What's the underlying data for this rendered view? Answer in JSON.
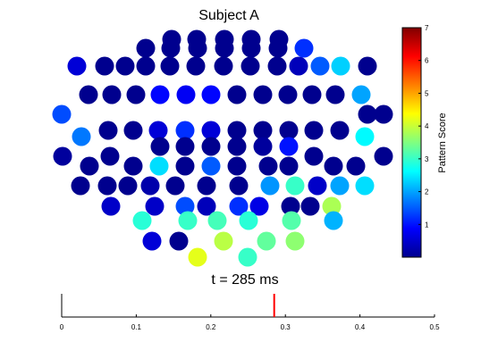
{
  "chart_data": [
    {
      "type": "scatter",
      "subtype": "topographic-electrode-map",
      "title": "Subject A",
      "colorbar": {
        "label": "Pattern Score",
        "colormap": "jet",
        "range": [
          0,
          7
        ],
        "ticks": [
          "1",
          "2",
          "3",
          "4",
          "5",
          "6",
          "7"
        ]
      },
      "electrode_rows": [
        [
          0.1,
          0.1,
          0.1,
          0.1,
          0.1
        ],
        [
          0.1,
          0.1,
          0.1,
          0.1,
          0.1,
          0.1
        ],
        [
          1.2,
          0.6,
          0.1,
          0.1,
          0.1,
          0.1,
          0.1,
          0.1,
          0.1,
          0.1,
          0.4,
          1.5
        ],
        [
          2.3,
          0.1,
          0.1,
          0.1,
          0.1,
          0.9,
          0.8,
          0.9,
          0.1,
          0.1,
          0.1,
          0.1,
          0.1,
          2.0
        ],
        [
          1.4,
          0.1,
          0.1,
          0.1,
          0.1,
          0.6,
          1.2,
          0.6,
          0.1,
          0.1,
          0.1,
          0.1,
          0.1,
          1.7
        ],
        [
          2.6,
          0.1,
          0.1,
          0.1,
          0.1,
          0.2,
          1.0,
          0.2,
          0.1,
          0.1,
          0.1,
          0.1,
          0.1,
          2.4
        ],
        [
          0.1,
          1.5,
          0.1,
          0.1,
          0.1,
          0.1,
          0.1,
          0.1,
          0.1,
          0.1,
          0.3,
          0.1,
          0.1,
          0.1
        ],
        [
          1.9,
          3.0,
          0.5,
          2.0,
          2.4,
          0.5,
          0.5,
          1.4,
          0.4,
          1.2,
          0.7,
          0.1
        ],
        [
          0.1,
          3.8,
          2.9,
          3.0,
          3.1,
          2.9,
          3.2,
          2.1,
          0.6
        ],
        [
          0.1,
          3.9,
          3.3,
          3.6,
          4.2,
          3.0,
          3.6,
          2.8,
          0.2
        ],
        [
          0.1,
          0.1,
          0.1,
          1.9,
          3.6,
          2.1,
          0.1,
          0.1
        ],
        [
          0.1,
          0.1,
          0.1,
          0.1,
          0.1,
          0.1
        ]
      ]
    },
    {
      "type": "timeline",
      "title": "t = 285 ms",
      "xlim": [
        0,
        0.5
      ],
      "xticks": [
        "0",
        "0.1",
        "0.2",
        "0.3",
        "0.4",
        "0.5"
      ],
      "marker": 0.285,
      "marker_color": "#ff0000"
    }
  ]
}
